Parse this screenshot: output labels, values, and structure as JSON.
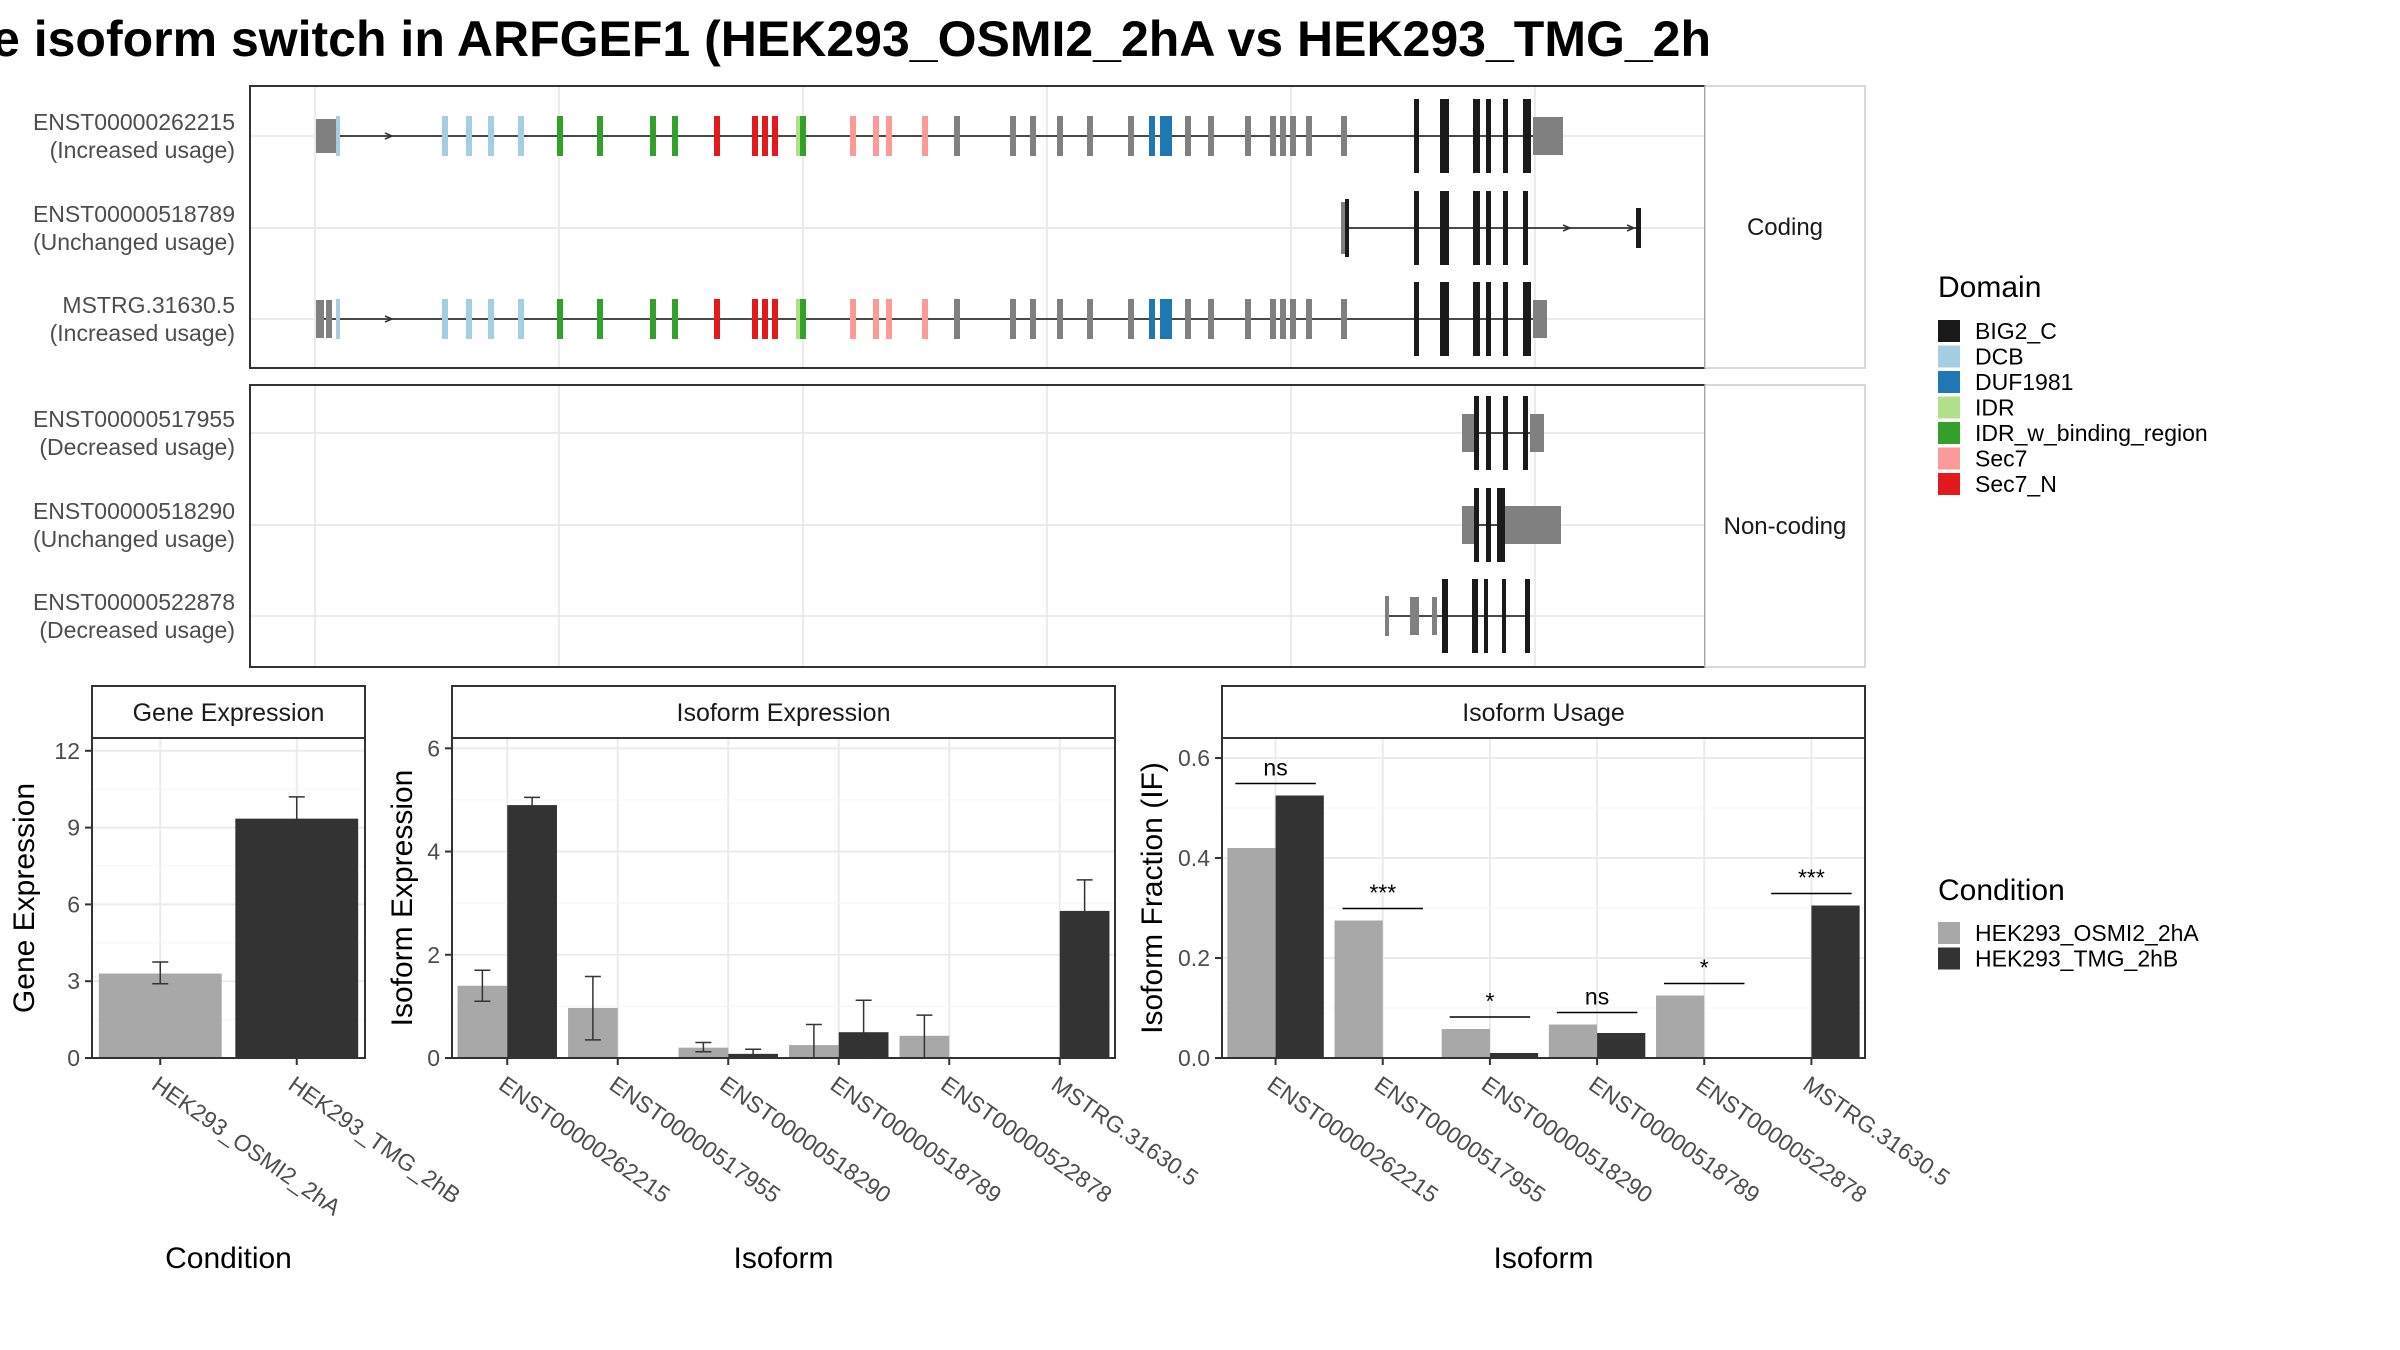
{
  "title": "e isoform switch in ARFGEF1 (HEK293_OSMI2_2hA vs HEK293_TMG_2h",
  "colors": {
    "BIG2_C": "#1a1a1a",
    "DCB": "#a6cee3",
    "DUF1981": "#1f78b4",
    "IDR": "#b2df8a",
    "IDR_w_binding_region": "#33a02c",
    "Sec7": "#fb9a99",
    "Sec7_N": "#e31a1c",
    "none": "#808080",
    "cond1": "#a8a8a8",
    "cond2": "#333333"
  },
  "structure": {
    "strips": [
      "Coding",
      "Non-coding"
    ],
    "transcripts": [
      {
        "id": "ENST00000262215",
        "usage": "(Increased usage)",
        "group": "Coding"
      },
      {
        "id": "ENST00000518789",
        "usage": "(Unchanged usage)",
        "group": "Coding"
      },
      {
        "id": "MSTRG.31630.5",
        "usage": "(Increased usage)",
        "group": "Coding"
      },
      {
        "id": "ENST00000517955",
        "usage": "(Decreased usage)",
        "group": "Non-coding"
      },
      {
        "id": "ENST00000518290",
        "usage": "(Unchanged usage)",
        "group": "Non-coding"
      },
      {
        "id": "ENST00000522878",
        "usage": "(Decreased usage)",
        "group": "Non-coding"
      }
    ]
  },
  "legend_domain": {
    "title": "Domain",
    "items": [
      "BIG2_C",
      "DCB",
      "DUF1981",
      "IDR",
      "IDR_w_binding_region",
      "Sec7",
      "Sec7_N"
    ]
  },
  "legend_condition": {
    "title": "Condition",
    "items": [
      "HEK293_OSMI2_2hA",
      "HEK293_TMG_2hB"
    ]
  },
  "chart_data": [
    {
      "type": "bar",
      "title": "Gene Expression",
      "xlabel": "Condition",
      "ylabel": "Gene Expression",
      "ylim": [
        0,
        12.5
      ],
      "yticks": [
        0,
        3,
        6,
        9,
        12
      ],
      "categories": [
        "HEK293_OSMI2_2hA",
        "HEK293_TMG_2hB"
      ],
      "values": [
        3.3,
        9.35
      ],
      "err_low": [
        2.9,
        8.55
      ],
      "err_high": [
        3.75,
        10.2
      ]
    },
    {
      "type": "bar",
      "title": "Isoform Expression",
      "xlabel": "Isoform",
      "ylabel": "Isoform Expression",
      "ylim": [
        0,
        6.2
      ],
      "yticks": [
        0,
        2,
        4,
        6
      ],
      "categories": [
        "ENST00000262215",
        "ENST00000517955",
        "ENST00000518290",
        "ENST00000518789",
        "ENST00000522878",
        "MSTRG.31630.5"
      ],
      "series": [
        {
          "name": "HEK293_OSMI2_2hA",
          "values": [
            1.4,
            0.97,
            0.2,
            0.25,
            0.43,
            0.0
          ],
          "err_low": [
            1.1,
            0.35,
            0.12,
            0.0,
            0.0,
            0.0
          ],
          "err_high": [
            1.7,
            1.58,
            0.3,
            0.65,
            0.83,
            0.0
          ]
        },
        {
          "name": "HEK293_TMG_2hB",
          "values": [
            4.9,
            0.0,
            0.08,
            0.5,
            0.0,
            2.85
          ],
          "err_low": [
            4.75,
            0.0,
            0.02,
            0.0,
            0.0,
            2.2
          ],
          "err_high": [
            5.05,
            0.0,
            0.17,
            1.12,
            0.0,
            3.45
          ]
        }
      ]
    },
    {
      "type": "bar",
      "title": "Isoform Usage",
      "xlabel": "Isoform",
      "ylabel": "Isoform Fraction (IF)",
      "ylim": [
        0,
        0.64
      ],
      "yticks": [
        0.0,
        0.2,
        0.4,
        0.6
      ],
      "ytick_labels": [
        "0.0",
        "0.2",
        "0.4",
        "0.6"
      ],
      "categories": [
        "ENST00000262215",
        "ENST00000517955",
        "ENST00000518290",
        "ENST00000518789",
        "ENST00000522878",
        "MSTRG.31630.5"
      ],
      "series": [
        {
          "name": "HEK293_OSMI2_2hA",
          "values": [
            0.42,
            0.275,
            0.058,
            0.067,
            0.125,
            0.0
          ]
        },
        {
          "name": "HEK293_TMG_2hB",
          "values": [
            0.525,
            0.0,
            0.01,
            0.05,
            0.0,
            0.305
          ]
        }
      ],
      "significance": [
        "ns",
        "***",
        "*",
        "ns",
        "*",
        "***"
      ]
    }
  ]
}
